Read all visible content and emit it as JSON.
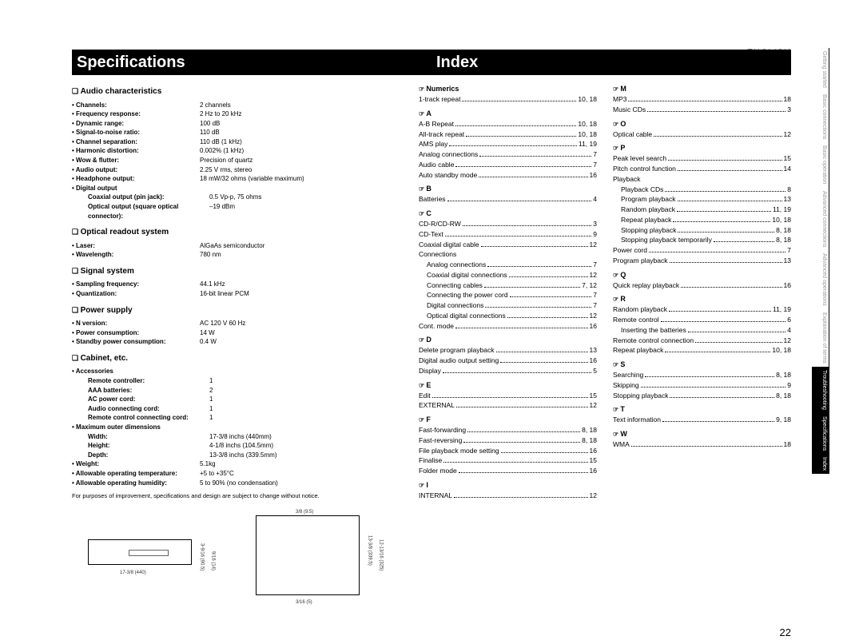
{
  "language_label": "ENGLISH",
  "page_number": "22",
  "banner": {
    "left_title": "Specifications",
    "right_title": "Index"
  },
  "spec_note": "For purposes of improvement, specifications and design are subject to change without notice.",
  "specs": [
    {
      "heading": "Audio characteristics",
      "rows": [
        {
          "label": "Channels:",
          "value": "2 channels"
        },
        {
          "label": "Frequency response:",
          "value": "2 Hz to 20 kHz"
        },
        {
          "label": "Dynamic range:",
          "value": "100 dB"
        },
        {
          "label": "Signal-to-noise ratio:",
          "value": "110 dB"
        },
        {
          "label": "Channel separation:",
          "value": "110 dB (1 kHz)"
        },
        {
          "label": "Harmonic distortion:",
          "value": "0.002% (1 kHz)"
        },
        {
          "label": "Wow & flutter:",
          "value": "Precision of quartz"
        },
        {
          "label": "Audio output:",
          "value": "2.25 V rms, stereo"
        },
        {
          "label": "Headphone output:",
          "value": "18 mW/32 ohms (variable maximum)"
        },
        {
          "label": "Digital output",
          "value": ""
        },
        {
          "label": "Coaxial output (pin jack):",
          "value": "0.5 Vp-p, 75 ohms",
          "sub": true,
          "nodot": true
        },
        {
          "label": "Optical output (square optical connector):",
          "value": "–19 dBm",
          "sub": true,
          "nodot": true
        }
      ]
    },
    {
      "heading": "Optical readout system",
      "rows": [
        {
          "label": "Laser:",
          "value": "AlGaAs semiconductor"
        },
        {
          "label": "Wavelength:",
          "value": "780 nm"
        }
      ]
    },
    {
      "heading": "Signal system",
      "rows": [
        {
          "label": "Sampling frequency:",
          "value": "44.1 kHz"
        },
        {
          "label": "Quantization:",
          "value": "16-bit linear PCM"
        }
      ]
    },
    {
      "heading": "Power supply",
      "rows": [
        {
          "label": "N version:",
          "value": "AC 120 V 60 Hz"
        },
        {
          "label": "Power consumption:",
          "value": "14 W"
        },
        {
          "label": "Standby power consumption:",
          "value": "0.4 W"
        }
      ]
    },
    {
      "heading": "Cabinet, etc.",
      "rows": [
        {
          "label": "Accessories",
          "value": ""
        },
        {
          "label": "Remote controller:",
          "value": "1",
          "sub": true,
          "nodot": true
        },
        {
          "label": "AAA batteries:",
          "value": "2",
          "sub": true,
          "nodot": true
        },
        {
          "label": "AC power cord:",
          "value": "1",
          "sub": true,
          "nodot": true
        },
        {
          "label": "Audio connecting cord:",
          "value": "1",
          "sub": true,
          "nodot": true
        },
        {
          "label": "Remote control connecting cord:",
          "value": "1",
          "sub": true,
          "nodot": true
        },
        {
          "label": "Maximum outer dimensions",
          "value": ""
        },
        {
          "label": "Width:",
          "value": "17-3/8 inchs (440mm)",
          "sub": true,
          "nodot": true
        },
        {
          "label": "Height:",
          "value": "4-1/8 inchs (104.5mm)",
          "sub": true,
          "nodot": true
        },
        {
          "label": "Depth:",
          "value": "13-3/8 inchs (339.5mm)",
          "sub": true,
          "nodot": true
        },
        {
          "label": "Weight:",
          "value": "5.1kg"
        },
        {
          "label": "Allowable operating temperature:",
          "value": "+5 to +35°C"
        },
        {
          "label": "Allowable operating humidity:",
          "value": "5 to 90% (no condensation)"
        }
      ]
    }
  ],
  "dims_labels": {
    "w": "17-3/8 (440)",
    "h1": "3-9/16 (90.5)",
    "h2": "9/16 (14)",
    "d": "13-3/8 (339.5)",
    "d2": "12-13/16 (325)",
    "d3": "3/16 (5)",
    "d4": "3/8 (9.5)"
  },
  "index_col1": [
    {
      "h": "Numerics"
    },
    {
      "t": "1-track repeat",
      "p": "10, 18"
    },
    {
      "h": "A"
    },
    {
      "t": "A-B Repeat",
      "p": "10, 18"
    },
    {
      "t": "All-track repeat",
      "p": "10, 18"
    },
    {
      "t": "AMS play",
      "p": "11, 19"
    },
    {
      "t": "Analog connections",
      "p": "7"
    },
    {
      "t": "Audio cable",
      "p": "7"
    },
    {
      "t": "Auto standby mode",
      "p": "16"
    },
    {
      "h": "B"
    },
    {
      "t": "Batteries",
      "p": "4"
    },
    {
      "h": "C"
    },
    {
      "t": "CD-R/CD-RW",
      "p": "3"
    },
    {
      "t": "CD-Text",
      "p": "9"
    },
    {
      "t": "Coaxial digital cable",
      "p": "12"
    },
    {
      "t": "Connections",
      "p": ""
    },
    {
      "t": "Analog connections",
      "p": "7",
      "sub": true
    },
    {
      "t": "Coaxial digital connections",
      "p": "12",
      "sub": true
    },
    {
      "t": "Connecting cables",
      "p": "7, 12",
      "sub": true
    },
    {
      "t": "Connecting the power cord",
      "p": "7",
      "sub": true
    },
    {
      "t": "Digital connections",
      "p": "7",
      "sub": true
    },
    {
      "t": "Optical digital connections",
      "p": "12",
      "sub": true
    },
    {
      "t": "Cont. mode",
      "p": "16"
    },
    {
      "h": "D"
    },
    {
      "t": "Delete program playback",
      "p": "13"
    },
    {
      "t": "Digital audio output setting",
      "p": "16"
    },
    {
      "t": "Display",
      "p": "5"
    },
    {
      "h": "E"
    },
    {
      "t": "Edit",
      "p": "15"
    },
    {
      "t": "EXTERNAL",
      "p": "12"
    },
    {
      "h": "F"
    },
    {
      "t": "Fast-forwarding",
      "p": "8, 18"
    },
    {
      "t": "Fast-reversing",
      "p": "8, 18"
    },
    {
      "t": "File playback mode setting",
      "p": "16"
    },
    {
      "t": "Finalise",
      "p": "15"
    },
    {
      "t": "Folder mode",
      "p": "16"
    },
    {
      "h": "I"
    },
    {
      "t": "INTERNAL",
      "p": "12"
    }
  ],
  "index_col2": [
    {
      "h": "M"
    },
    {
      "t": "MP3",
      "p": "18"
    },
    {
      "t": "Music CDs",
      "p": "3"
    },
    {
      "h": "O"
    },
    {
      "t": "Optical cable",
      "p": "12"
    },
    {
      "h": "P"
    },
    {
      "t": "Peak level search",
      "p": "15"
    },
    {
      "t": "Pitch control function",
      "p": "14"
    },
    {
      "t": "Playback",
      "p": ""
    },
    {
      "t": "Playback CDs",
      "p": "8",
      "sub": true
    },
    {
      "t": "Program playback",
      "p": "13",
      "sub": true
    },
    {
      "t": "Random playback",
      "p": "11, 19",
      "sub": true
    },
    {
      "t": "Repeat playback",
      "p": "10, 18",
      "sub": true
    },
    {
      "t": "Stopping playback",
      "p": "8, 18",
      "sub": true
    },
    {
      "t": "Stopping playback temporarily",
      "p": "8, 18",
      "sub": true
    },
    {
      "t": "Power cord",
      "p": "7"
    },
    {
      "t": "Program playback",
      "p": "13"
    },
    {
      "h": "Q"
    },
    {
      "t": "Quick replay playback",
      "p": "16"
    },
    {
      "h": "R"
    },
    {
      "t": "Random playback",
      "p": "11, 19"
    },
    {
      "t": "Remote control",
      "p": "6"
    },
    {
      "t": "Inserting the batteries",
      "p": "4",
      "sub": true
    },
    {
      "t": "Remote control connection",
      "p": "12"
    },
    {
      "t": "Repeat playback",
      "p": "10, 18"
    },
    {
      "h": "S"
    },
    {
      "t": "Searching",
      "p": "8, 18"
    },
    {
      "t": "Skipping",
      "p": "9"
    },
    {
      "t": "Stopping playback",
      "p": "8, 18"
    },
    {
      "h": "T"
    },
    {
      "t": "Text information",
      "p": "9, 18"
    },
    {
      "h": "W"
    },
    {
      "t": "WMA",
      "p": "18"
    }
  ],
  "side_tabs": [
    {
      "label": "Getting started",
      "active": false
    },
    {
      "label": "Basic connections",
      "active": false
    },
    {
      "label": "Basic operation",
      "active": false
    },
    {
      "label": "Advanced connections",
      "active": false
    },
    {
      "label": "Advanced operations",
      "active": false
    },
    {
      "label": "Explanation of terms",
      "active": false
    },
    {
      "label": "Troubleshooting",
      "active": true
    },
    {
      "label": "Specifications",
      "active": true
    },
    {
      "label": "Index",
      "active": true
    }
  ]
}
